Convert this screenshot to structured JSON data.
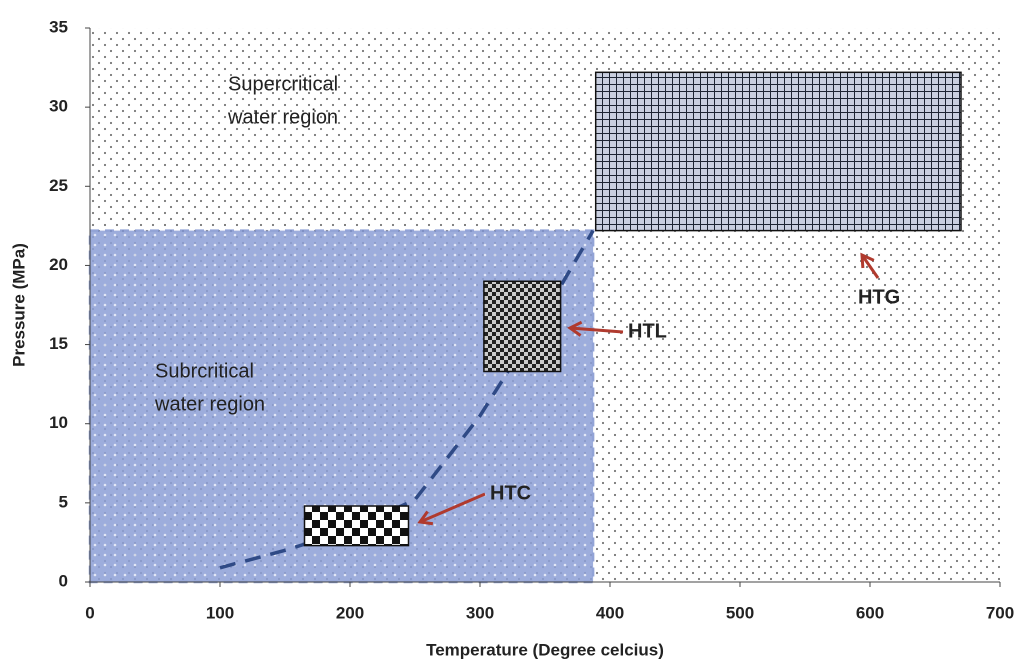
{
  "chart_data": {
    "type": "region",
    "x_label": "Temperature (Degree celcius)",
    "y_label": "Pressure (MPa)",
    "xlim": [
      0,
      700
    ],
    "xticks": [
      0,
      100,
      200,
      300,
      400,
      500,
      600,
      700
    ],
    "ylim": [
      0,
      35
    ],
    "yticks": [
      0,
      5,
      10,
      15,
      20,
      25,
      30,
      35
    ],
    "regions": [
      {
        "label_lines": [
          "Supercritical",
          "water region"
        ]
      },
      {
        "label_lines": [
          "Subrcritical",
          "water region"
        ],
        "x": [
          0,
          387
        ],
        "y": [
          0,
          22.2
        ],
        "color": "#7f93cf"
      }
    ],
    "curve": {
      "x": [
        100,
        150,
        200,
        250,
        300,
        350,
        387
      ],
      "y": [
        0.9,
        2,
        3.3,
        5.2,
        10.5,
        17,
        22.2
      ],
      "color": "#2f4a86"
    },
    "processes": [
      {
        "name": "HTC",
        "x": [
          165,
          245
        ],
        "y": [
          2.3,
          4.8
        ],
        "arrow_color": "#b03a2e"
      },
      {
        "name": "HTL",
        "x": [
          303,
          362
        ],
        "y": [
          13.3,
          19
        ],
        "arrow_color": "#b03a2e"
      },
      {
        "name": "HTG",
        "x": [
          389,
          670
        ],
        "y": [
          22.2,
          32.2
        ],
        "arrow_color": "#b03a2e"
      }
    ]
  }
}
